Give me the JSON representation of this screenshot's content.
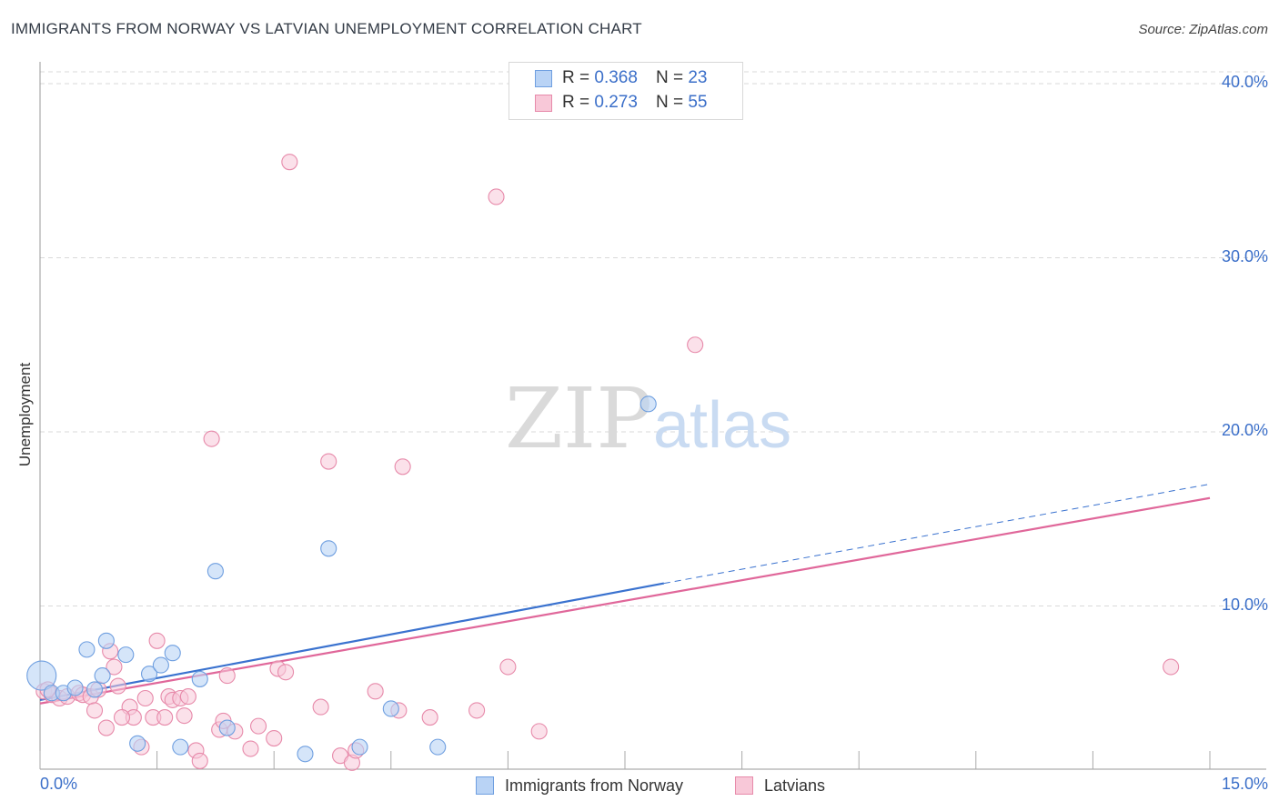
{
  "header": {
    "title": "IMMIGRANTS FROM NORWAY VS LATVIAN UNEMPLOYMENT CORRELATION CHART",
    "source": "Source: ZipAtlas.com"
  },
  "legend": {
    "rows": [
      {
        "r_label": "R =",
        "r_value": "0.368",
        "n_label": "N =",
        "n_value": "23"
      },
      {
        "r_label": "R =",
        "r_value": "0.273",
        "n_label": "N =",
        "n_value": "55"
      }
    ]
  },
  "bottom_legend": [
    "Immigrants from Norway",
    "Latvians"
  ],
  "watermark": {
    "zip": "ZIP",
    "atlas": "atlas"
  },
  "colors": {
    "blue_fill": "#b9d3f5",
    "blue_stroke": "#6f9fe0",
    "blue_line": "#3a72cf",
    "pink_fill": "#f8c8d8",
    "pink_stroke": "#e78aaa",
    "pink_line": "#e0679a",
    "grid": "#d9d9d9",
    "axis_text": "#3b6fc9"
  },
  "chart_data": {
    "type": "scatter",
    "title": "IMMIGRANTS FROM NORWAY VS LATVIAN UNEMPLOYMENT CORRELATION CHART",
    "xlabel": "",
    "ylabel": "Unemployment",
    "xlim": [
      0,
      15
    ],
    "ylim": [
      0,
      40
    ],
    "x_tick_labels": [
      "0.0%",
      "15.0%"
    ],
    "y_ticks": [
      10,
      20,
      30,
      40
    ],
    "y_tick_labels": [
      "10.0%",
      "20.0%",
      "30.0%",
      "40.0%"
    ],
    "grid": true,
    "legend_position": "top-center",
    "series": [
      {
        "name": "Immigrants from Norway",
        "r": 0.368,
        "n": 23,
        "trend": {
          "x0": 0,
          "y0": 4.6,
          "x1": 8.0,
          "y1": 11.3,
          "dash_to_x": 15.0,
          "dash_to_y": 17.0
        },
        "points": [
          [
            0.02,
            6.0
          ],
          [
            0.15,
            5.0
          ],
          [
            0.3,
            5.0
          ],
          [
            0.45,
            5.3
          ],
          [
            0.6,
            7.5
          ],
          [
            0.8,
            6.0
          ],
          [
            0.85,
            8.0
          ],
          [
            1.1,
            7.2
          ],
          [
            1.25,
            2.1
          ],
          [
            1.4,
            6.1
          ],
          [
            1.55,
            6.6
          ],
          [
            1.7,
            7.3
          ],
          [
            1.8,
            1.9
          ],
          [
            2.05,
            5.8
          ],
          [
            2.25,
            12.0
          ],
          [
            2.4,
            3.0
          ],
          [
            3.4,
            1.5
          ],
          [
            3.7,
            13.3
          ],
          [
            4.1,
            1.9
          ],
          [
            4.5,
            4.1
          ],
          [
            5.1,
            1.9
          ],
          [
            7.8,
            21.6
          ],
          [
            0.7,
            5.2
          ]
        ]
      },
      {
        "name": "Latvians",
        "r": 0.273,
        "n": 55,
        "trend": {
          "x0": 0,
          "y0": 4.4,
          "x1": 15.0,
          "y1": 16.2
        },
        "points": [
          [
            0.05,
            5.1
          ],
          [
            0.15,
            4.9
          ],
          [
            0.25,
            4.7
          ],
          [
            0.35,
            4.8
          ],
          [
            0.5,
            5.0
          ],
          [
            0.55,
            4.9
          ],
          [
            0.65,
            4.8
          ],
          [
            0.75,
            5.2
          ],
          [
            0.7,
            4.0
          ],
          [
            0.85,
            3.0
          ],
          [
            0.9,
            7.4
          ],
          [
            0.95,
            6.5
          ],
          [
            1.0,
            5.4
          ],
          [
            1.15,
            4.2
          ],
          [
            1.2,
            3.6
          ],
          [
            1.3,
            1.9
          ],
          [
            1.35,
            4.7
          ],
          [
            1.45,
            3.6
          ],
          [
            1.5,
            8.0
          ],
          [
            1.6,
            3.6
          ],
          [
            1.65,
            4.8
          ],
          [
            1.7,
            4.6
          ],
          [
            1.8,
            4.7
          ],
          [
            1.85,
            3.7
          ],
          [
            1.9,
            4.8
          ],
          [
            2.0,
            1.7
          ],
          [
            2.05,
            1.1
          ],
          [
            2.2,
            19.6
          ],
          [
            2.3,
            2.9
          ],
          [
            2.35,
            3.4
          ],
          [
            2.4,
            6.0
          ],
          [
            2.5,
            2.8
          ],
          [
            2.7,
            1.8
          ],
          [
            2.8,
            3.1
          ],
          [
            3.0,
            2.4
          ],
          [
            3.05,
            6.4
          ],
          [
            3.15,
            6.2
          ],
          [
            3.2,
            35.5
          ],
          [
            3.6,
            4.2
          ],
          [
            3.7,
            18.3
          ],
          [
            3.85,
            1.4
          ],
          [
            4.0,
            1.0
          ],
          [
            4.05,
            1.7
          ],
          [
            4.3,
            5.1
          ],
          [
            4.6,
            4.0
          ],
          [
            4.65,
            18.0
          ],
          [
            5.0,
            3.6
          ],
          [
            5.6,
            4.0
          ],
          [
            5.85,
            33.5
          ],
          [
            6.0,
            6.5
          ],
          [
            6.4,
            2.8
          ],
          [
            8.4,
            25.0
          ],
          [
            14.5,
            6.5
          ],
          [
            0.1,
            5.2
          ],
          [
            1.05,
            3.6
          ]
        ]
      }
    ]
  }
}
